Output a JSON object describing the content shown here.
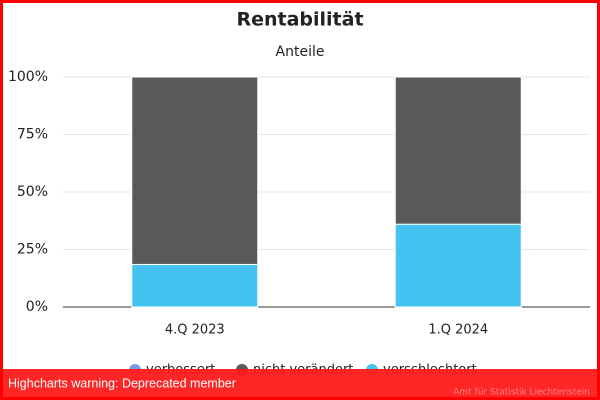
{
  "chart_data": {
    "type": "stacked_bar",
    "title": "Rentabilität",
    "subtitle": "Anteile",
    "categories": [
      "4.Q 2023",
      "1.Q 2024"
    ],
    "series": [
      {
        "name": "verbessert",
        "color": "#7b9ae6",
        "values": [
          0,
          0
        ]
      },
      {
        "name": "nicht verändert",
        "color": "#595959",
        "values": [
          81.5,
          64
        ]
      },
      {
        "name": "verschlechtert",
        "color": "#45c3f0",
        "values": [
          18.5,
          36
        ]
      }
    ],
    "ylim": [
      0,
      100
    ],
    "yticks": [
      {
        "value": 0,
        "label": "0%"
      },
      {
        "value": 25,
        "label": "25%"
      },
      {
        "value": 50,
        "label": "50%"
      },
      {
        "value": 75,
        "label": "75%"
      },
      {
        "value": 100,
        "label": "100%"
      }
    ],
    "grid": true,
    "legend": "bottom",
    "credit": "Amt für Statistik Liechtenstein",
    "warning": "Highcharts warning: Deprecated member"
  }
}
